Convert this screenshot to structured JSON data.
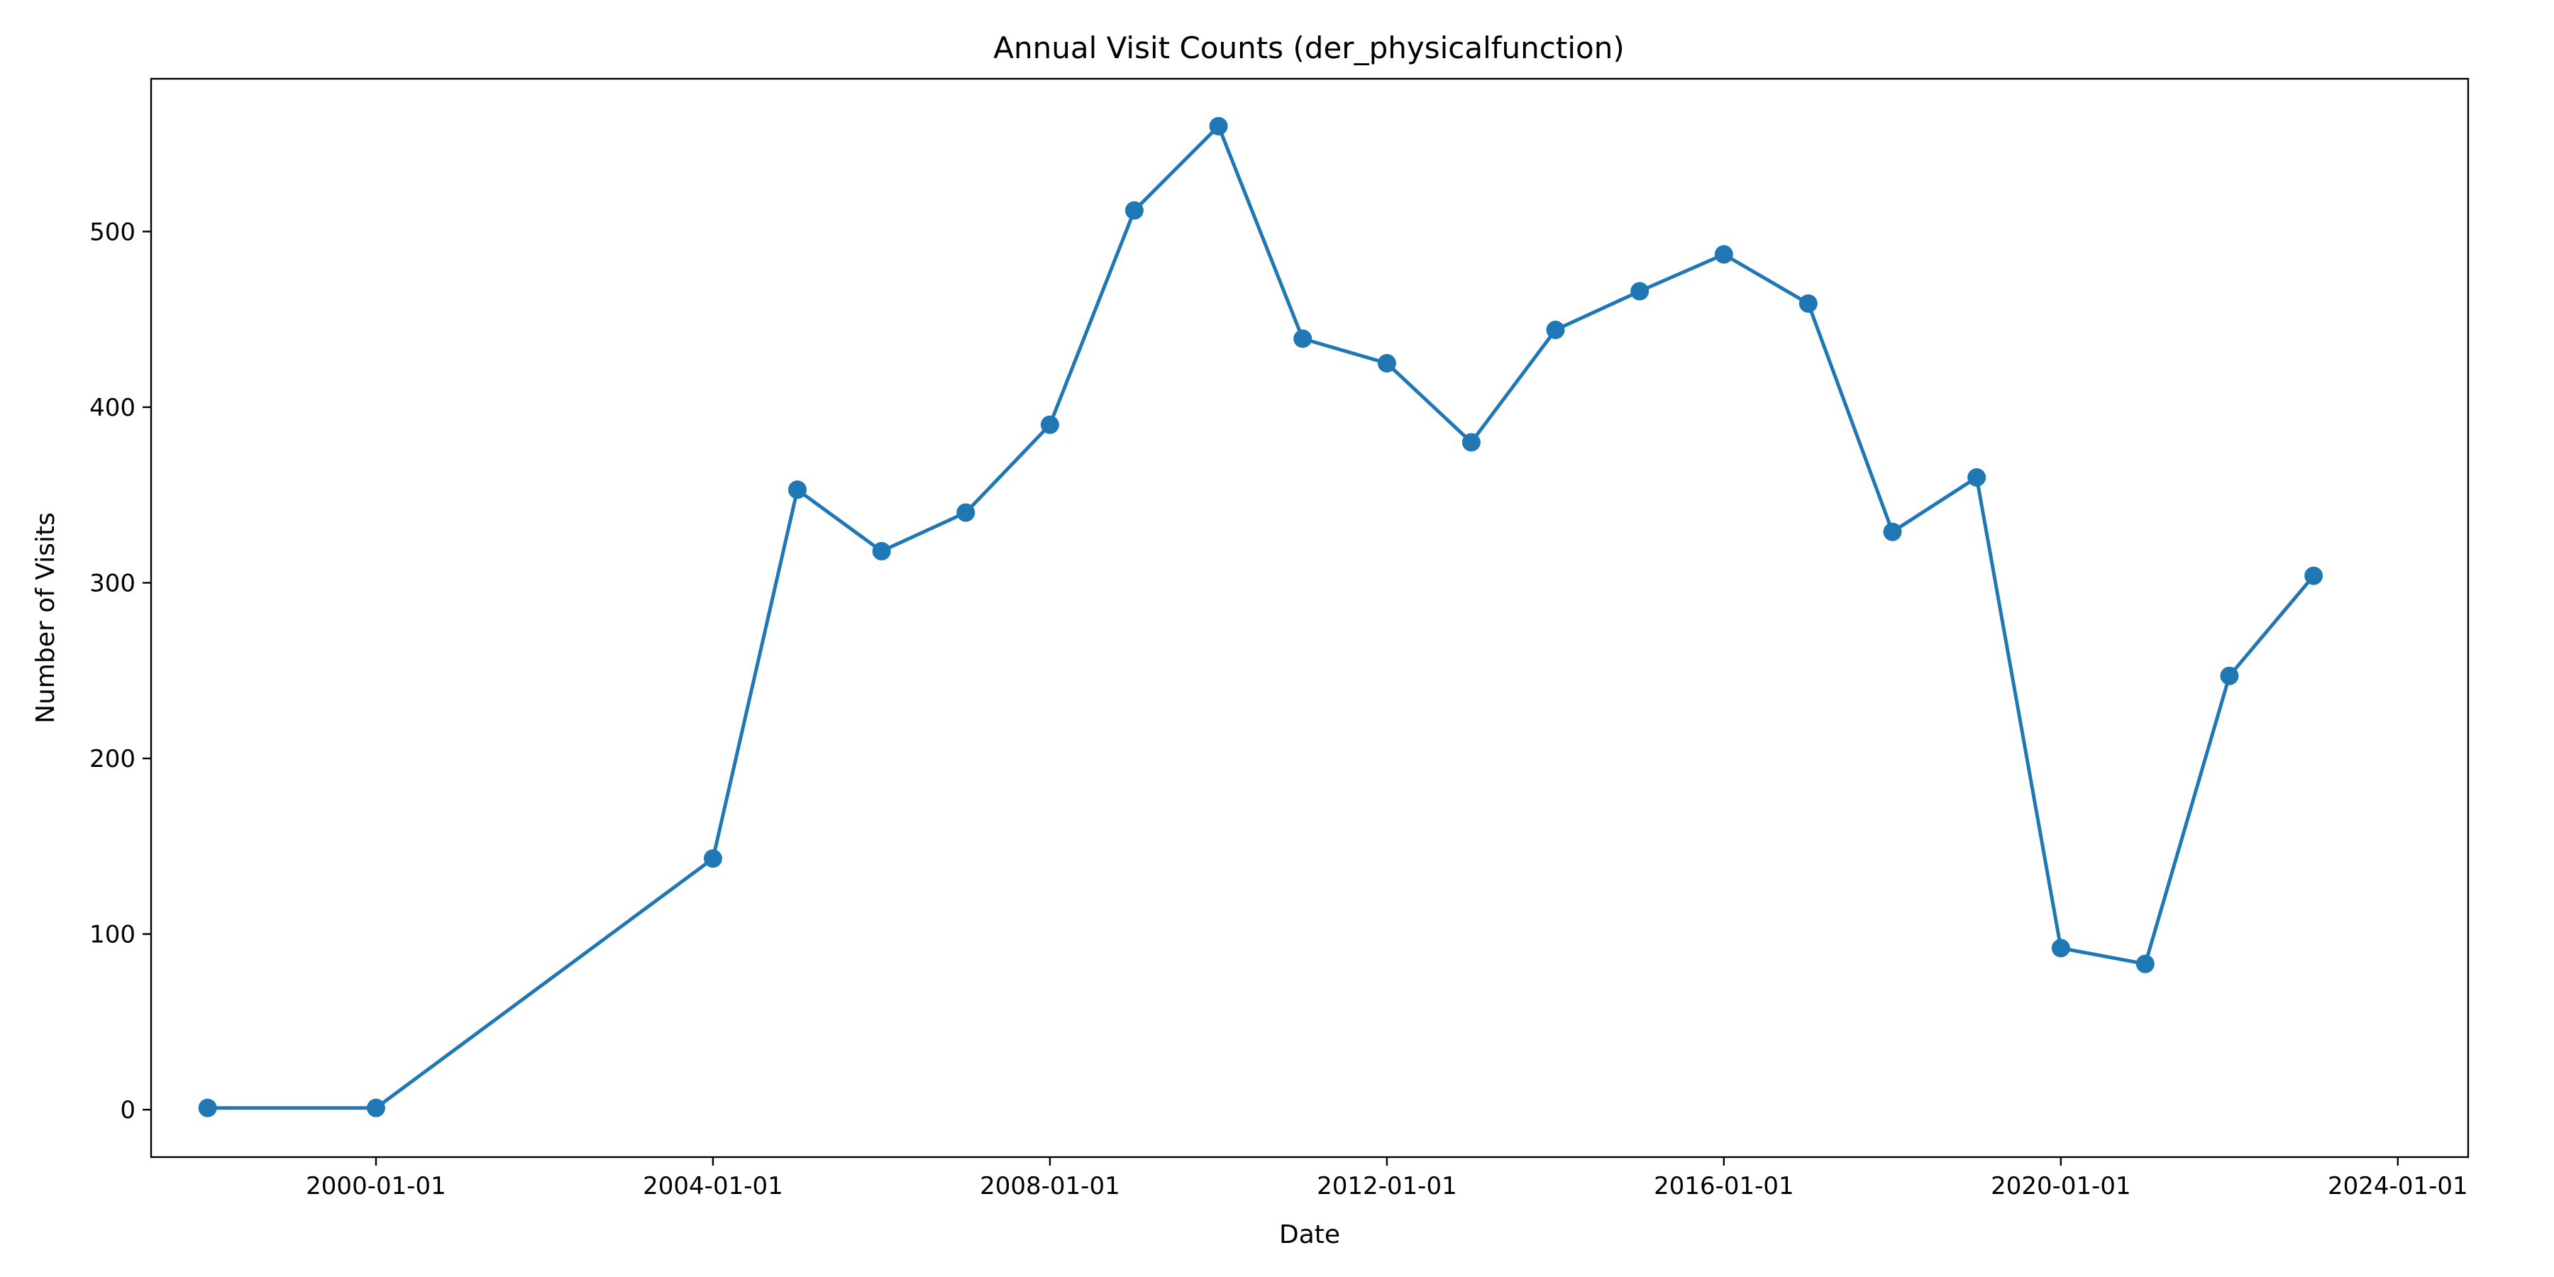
{
  "chart_data": {
    "type": "line",
    "title": "Annual Visit Counts (der_physicalfunction)",
    "xlabel": "Date",
    "ylabel": "Number of Visits",
    "x_tick_labels": [
      "2000-01-01",
      "2004-01-01",
      "2008-01-01",
      "2012-01-01",
      "2016-01-01",
      "2020-01-01",
      "2024-01-01"
    ],
    "y_ticks": [
      0,
      100,
      200,
      300,
      400,
      500
    ],
    "xlim": [
      "1997-05-01",
      "2024-11-01"
    ],
    "ylim": [
      -27,
      587
    ],
    "grid": false,
    "series": [
      {
        "color": "#1f77b4",
        "x": [
          "1998-01-01",
          "2000-01-01",
          "2004-01-01",
          "2005-01-01",
          "2006-01-01",
          "2007-01-01",
          "2008-01-01",
          "2009-01-01",
          "2010-01-01",
          "2011-01-01",
          "2012-01-01",
          "2013-01-01",
          "2014-01-01",
          "2015-01-01",
          "2016-01-01",
          "2017-01-01",
          "2018-01-01",
          "2019-01-01",
          "2020-01-01",
          "2021-01-01",
          "2022-01-01",
          "2023-01-01"
        ],
        "y": [
          1,
          1,
          143,
          353,
          318,
          340,
          390,
          512,
          560,
          439,
          425,
          380,
          444,
          466,
          487,
          459,
          329,
          360,
          92,
          83,
          247,
          304
        ]
      }
    ]
  }
}
